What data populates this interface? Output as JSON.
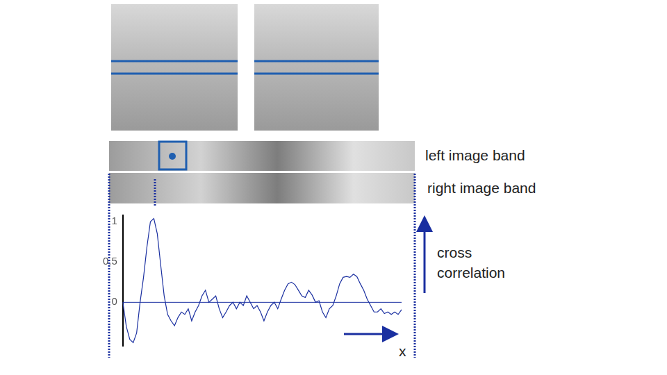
{
  "image_labels": [
    "left image band",
    "right image band"
  ],
  "chart_data": {
    "type": "line",
    "color": "#1a2fa0",
    "y_label": "cross correlation",
    "x_label": "x",
    "values": [
      0,
      -0.3,
      -0.46,
      -0.5,
      -0.38,
      0,
      0.31,
      0.69,
      1.0,
      1.04,
      0.85,
      0.46,
      0.08,
      -0.15,
      -0.23,
      -0.29,
      -0.19,
      -0.12,
      -0.15,
      -0.08,
      -0.23,
      -0.12,
      -0.04,
      0.08,
      0.15,
      0,
      0.04,
      0.08,
      -0.08,
      -0.19,
      -0.12,
      -0.04,
      0,
      -0.08,
      0,
      -0.04,
      0.08,
      0,
      -0.08,
      -0.04,
      -0.12,
      -0.23,
      -0.12,
      -0.04,
      0,
      -0.08,
      0.04,
      0.15,
      0.23,
      0.25,
      0.22,
      0.15,
      0.08,
      0.06,
      0.15,
      0.09,
      0,
      0.02,
      -0.12,
      -0.19,
      -0.08,
      -0.04,
      0.08,
      0.23,
      0.31,
      0.32,
      0.31,
      0.35,
      0.32,
      0.23,
      0.15,
      0.04,
      -0.04,
      -0.12,
      -0.12,
      -0.08,
      -0.14,
      -0.12,
      -0.15,
      -0.12,
      -0.15,
      -0.09
    ],
    "ylim": [
      -0.54,
      1.08
    ],
    "yticks": [
      0,
      0.5,
      1
    ],
    "grid": false,
    "tick_labels": "y"
  }
}
